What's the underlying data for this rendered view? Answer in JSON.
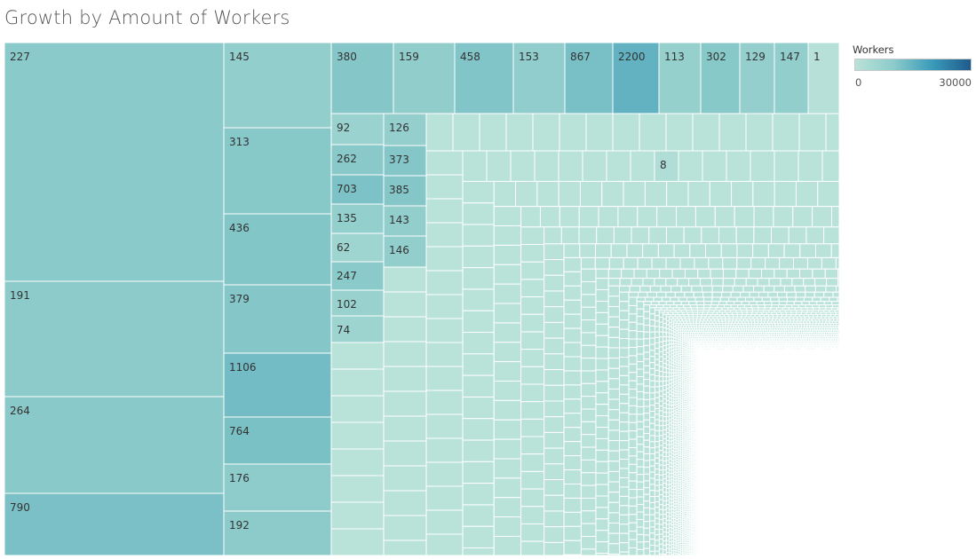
{
  "chart_data": {
    "type": "treemap",
    "title": "Growth by Amount of Workers",
    "color_scale": {
      "label": "Workers",
      "min": 0,
      "max": 30000,
      "min_label": "0",
      "max_label": "30000",
      "colors": [
        "#b9e2d9",
        "#8ccbca",
        "#3a9bb9",
        "#1f5a8c"
      ]
    },
    "labeled_values": [
      {
        "label": "227",
        "value": 227
      },
      {
        "label": "191",
        "value": 191
      },
      {
        "label": "264",
        "value": 264
      },
      {
        "label": "790",
        "value": 790
      },
      {
        "label": "145",
        "value": 145
      },
      {
        "label": "313",
        "value": 313
      },
      {
        "label": "436",
        "value": 436
      },
      {
        "label": "379",
        "value": 379
      },
      {
        "label": "1106",
        "value": 1106
      },
      {
        "label": "764",
        "value": 764
      },
      {
        "label": "176",
        "value": 176
      },
      {
        "label": "192",
        "value": 192
      },
      {
        "label": "380",
        "value": 380
      },
      {
        "label": "159",
        "value": 159
      },
      {
        "label": "458",
        "value": 458
      },
      {
        "label": "153",
        "value": 153
      },
      {
        "label": "867",
        "value": 867
      },
      {
        "label": "2200",
        "value": 2200
      },
      {
        "label": "113",
        "value": 113
      },
      {
        "label": "302",
        "value": 302
      },
      {
        "label": "129",
        "value": 129
      },
      {
        "label": "147",
        "value": 147
      },
      {
        "label": "1",
        "value": 1
      },
      {
        "label": "92",
        "value": 92
      },
      {
        "label": "262",
        "value": 262
      },
      {
        "label": "703",
        "value": 703
      },
      {
        "label": "135",
        "value": 135
      },
      {
        "label": "62",
        "value": 62
      },
      {
        "label": "247",
        "value": 247
      },
      {
        "label": "102",
        "value": 102
      },
      {
        "label": "74",
        "value": 74
      },
      {
        "label": "126",
        "value": 126
      },
      {
        "label": "373",
        "value": 373
      },
      {
        "label": "385",
        "value": 385
      },
      {
        "label": "143",
        "value": 143
      },
      {
        "label": "146",
        "value": 146
      },
      {
        "label": "8",
        "value": 8
      }
    ]
  }
}
